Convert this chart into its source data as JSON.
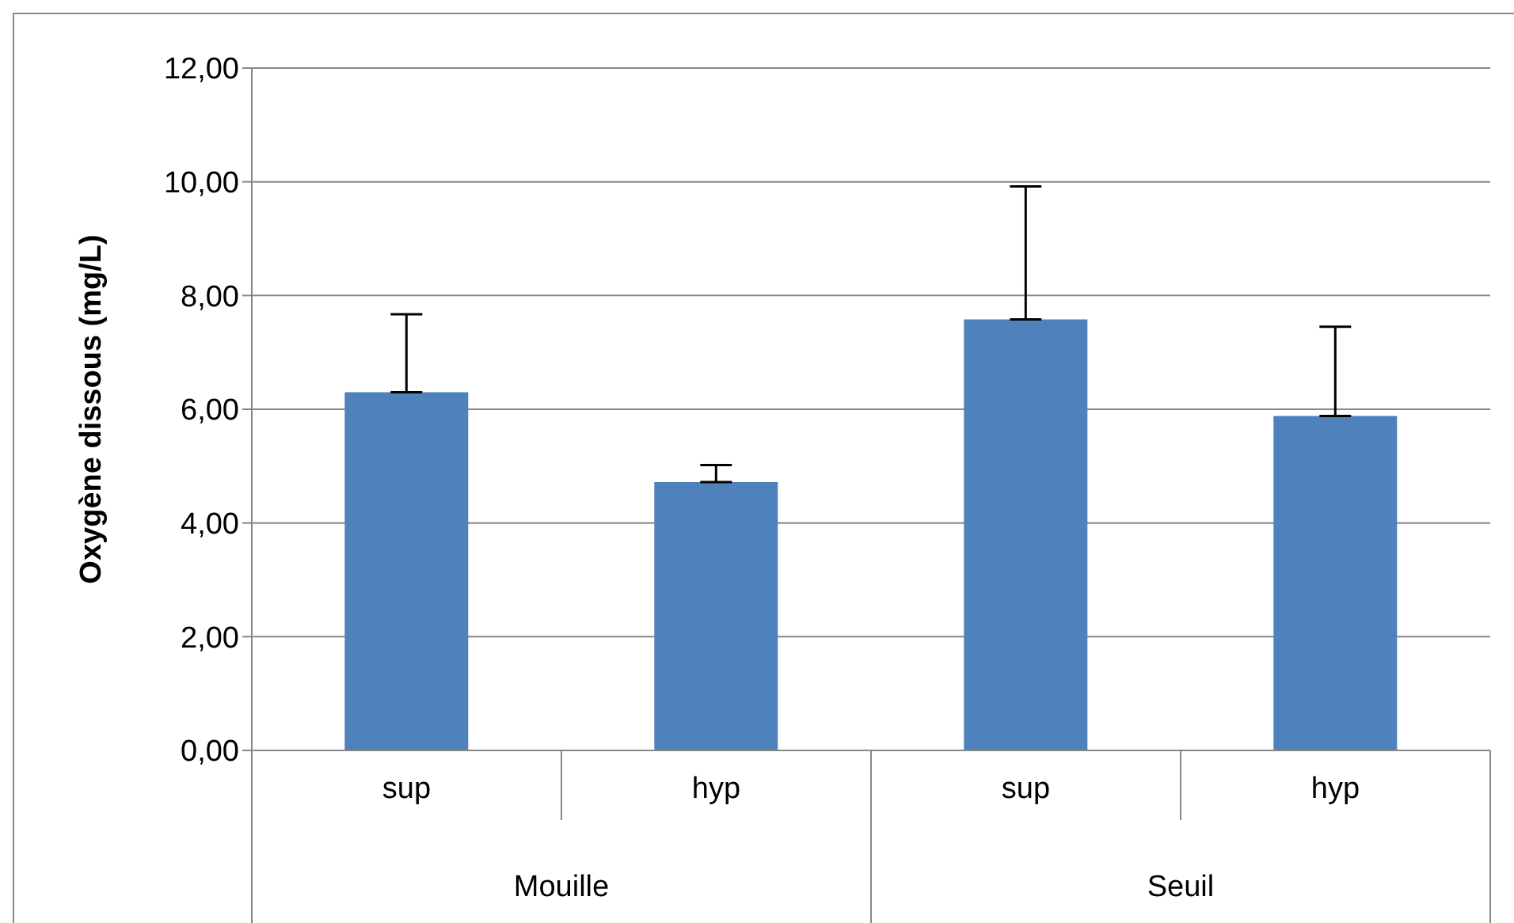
{
  "chart_data": {
    "type": "bar",
    "ylabel": "Oxygène dissous (mg/L)",
    "categories": [
      "sup",
      "hyp",
      "sup",
      "hyp"
    ],
    "values": [
      6.3,
      4.72,
      7.58,
      5.88
    ],
    "color": "#4f81bd",
    "errors": [
      [
        6.3,
        7.67
      ],
      [
        4.72,
        5.02
      ],
      [
        7.58,
        9.92
      ],
      [
        5.88,
        7.45
      ]
    ],
    "ylim": [
      0,
      12
    ],
    "yticks": [
      {
        "value": 0,
        "label": "0,00"
      },
      {
        "value": 2,
        "label": "2,00"
      },
      {
        "value": 4,
        "label": "4,00"
      },
      {
        "value": 6,
        "label": "6,00"
      },
      {
        "value": 8,
        "label": "8,00"
      },
      {
        "value": 10,
        "label": "10,00"
      },
      {
        "value": 12,
        "label": "12,00"
      }
    ],
    "grid": "y",
    "legend": false,
    "annotations": [
      "Mouille",
      "Seuil"
    ]
  }
}
